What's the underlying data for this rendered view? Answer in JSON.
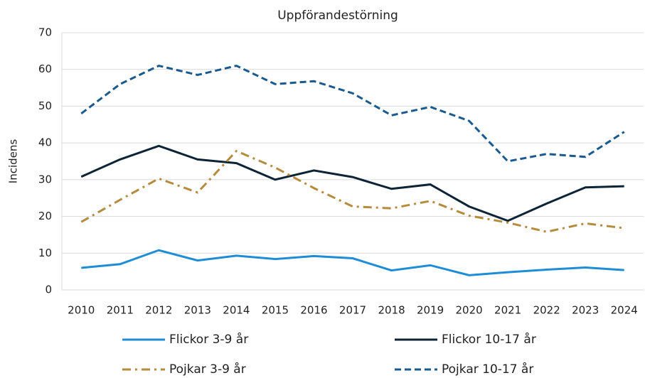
{
  "chart_data": {
    "type": "line",
    "title": "Uppförandestörning",
    "y_label": "Incidens",
    "categories": [
      "2010",
      "2011",
      "2012",
      "2013",
      "2014",
      "2015",
      "2016",
      "2017",
      "2018",
      "2019",
      "2020",
      "2021",
      "2022",
      "2023",
      "2024"
    ],
    "series": [
      {
        "name": "Flickor 3-9 år",
        "color": "#1f8dd6",
        "line_style": "solid",
        "values": [
          6.0,
          7.0,
          10.8,
          8.0,
          9.3,
          8.4,
          9.2,
          8.6,
          5.3,
          6.7,
          4.0,
          4.8,
          5.5,
          6.1,
          5.4
        ]
      },
      {
        "name": "Flickor 10-17 år",
        "color": "#0d2436",
        "line_style": "solid",
        "values": [
          30.8,
          35.5,
          39.2,
          35.5,
          34.5,
          30.0,
          32.5,
          30.7,
          27.5,
          28.7,
          22.7,
          18.8,
          23.5,
          27.9,
          28.2
        ]
      },
      {
        "name": "Pojkar 3-9 år",
        "color": "#b58b3d",
        "line_style": "dashdot",
        "values": [
          18.5,
          24.5,
          30.3,
          26.5,
          37.8,
          33.3,
          27.7,
          22.7,
          22.2,
          24.2,
          20.2,
          18.3,
          15.8,
          18.1,
          16.8
        ]
      },
      {
        "name": "Pojkar 10-17 år",
        "color": "#1a5a8e",
        "line_style": "dashed",
        "values": [
          48.0,
          56.0,
          61.0,
          58.5,
          61.0,
          56.0,
          56.8,
          53.5,
          47.5,
          49.8,
          46.0,
          35.0,
          37.0,
          36.2,
          43.0
        ]
      }
    ],
    "ylim": [
      0,
      70
    ],
    "yticks": [
      0,
      10,
      20,
      30,
      40,
      50,
      60,
      70
    ],
    "grid": true,
    "legend": "bottom"
  }
}
